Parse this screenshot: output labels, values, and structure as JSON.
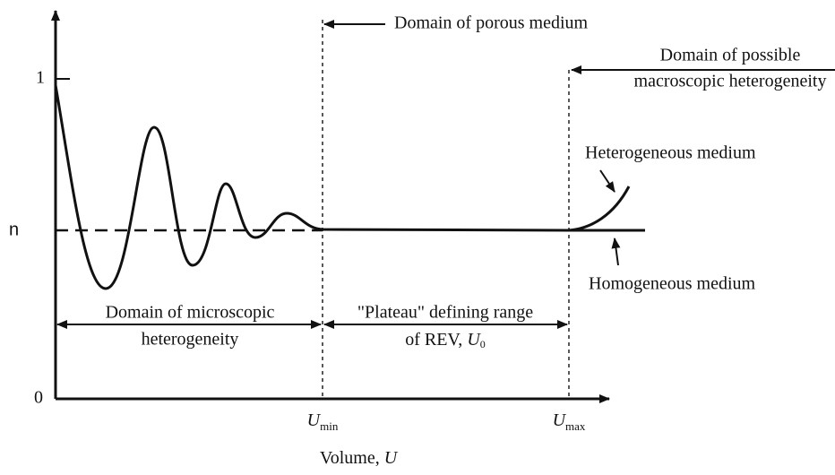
{
  "axis": {
    "y_top": "1",
    "y_level": "n",
    "y_origin": "0",
    "x_label": {
      "text": "Volume, ",
      "symbol": "U"
    }
  },
  "labels": {
    "porous": "Domain of porous medium",
    "macro": [
      "Domain of possible",
      "macroscopic heterogeneity"
    ],
    "heterogeneous": "Heterogeneous  medium",
    "homogeneous": "Homogeneous  medium",
    "micro": [
      "Domain of microscopic",
      "heterogeneity"
    ],
    "plateau": {
      "line1": "\"Plateau\" defining range",
      "line2": "of REV, ",
      "symbol": "U",
      "subscript": "0"
    },
    "umin": {
      "symbol": "U",
      "subscript": "min"
    },
    "umax": {
      "symbol": "U",
      "subscript": "max"
    }
  }
}
